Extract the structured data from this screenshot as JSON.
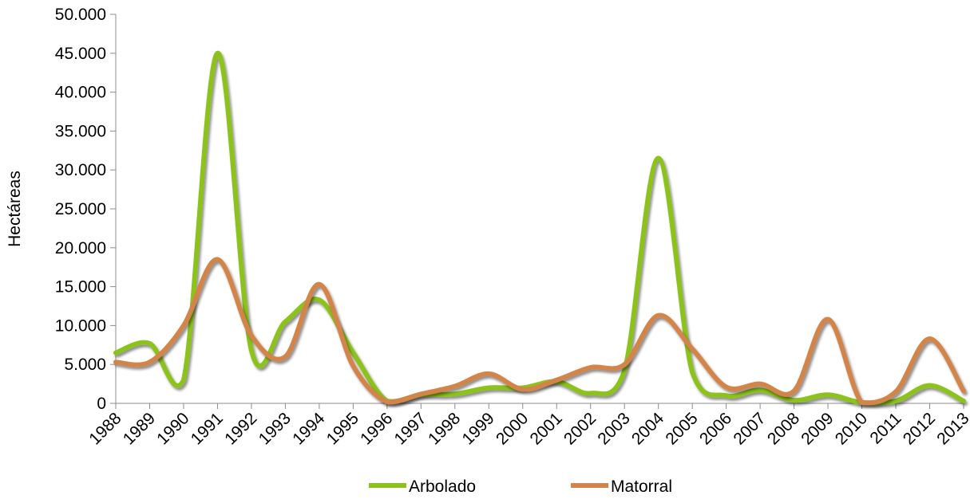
{
  "chart_data": {
    "type": "line",
    "ylabel": "Hectáreas",
    "ylim": [
      0,
      50000
    ],
    "yticks": [
      "0",
      "5.000",
      "10.000",
      "15.000",
      "20.000",
      "25.000",
      "30.000",
      "35.000",
      "40.000",
      "45.000",
      "50.000"
    ],
    "ytick_values": [
      0,
      5000,
      10000,
      15000,
      20000,
      25000,
      30000,
      35000,
      40000,
      45000,
      50000
    ],
    "categories": [
      "1988",
      "1989",
      "1990",
      "1991",
      "1992",
      "1993",
      "1994",
      "1995",
      "1996",
      "1997",
      "1998",
      "1999",
      "2000",
      "2001",
      "2002",
      "2003",
      "2004",
      "2005",
      "2006",
      "2007",
      "2008",
      "2009",
      "2010",
      "2011",
      "2012",
      "2013"
    ],
    "series": [
      {
        "name": "Arbolado",
        "color": "#8cc21a",
        "values": [
          6500,
          7700,
          3000,
          45000,
          6800,
          10500,
          13300,
          6500,
          300,
          1100,
          1200,
          2000,
          2000,
          2800,
          1300,
          4200,
          31500,
          4000,
          1000,
          1700,
          400,
          1100,
          100,
          300,
          2300,
          300
        ]
      },
      {
        "name": "Matorral",
        "color": "#d2844a",
        "values": [
          5300,
          5300,
          10000,
          18500,
          8700,
          6000,
          15300,
          4800,
          200,
          1200,
          2200,
          3800,
          1800,
          3000,
          4600,
          5000,
          11300,
          7000,
          2100,
          2500,
          1600,
          10800,
          100,
          1500,
          8300,
          1600
        ]
      }
    ],
    "grid": false,
    "legend": "bottom"
  }
}
